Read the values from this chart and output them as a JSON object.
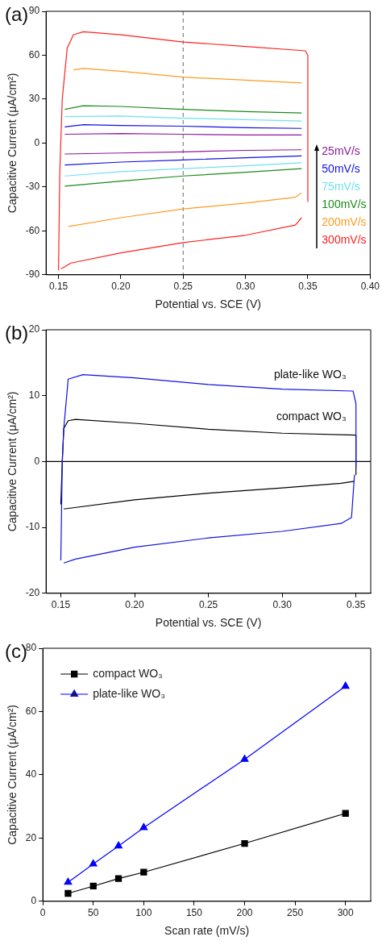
{
  "chart_data": [
    {
      "type": "line",
      "title": "(a)",
      "xlabel": "Potential vs. SCE (V)",
      "ylabel": "Capacitive Current (μA/cm²)",
      "xlim": [
        0.14,
        0.4
      ],
      "xticks": [
        {
          "value": 0.15,
          "label": "0.15"
        },
        {
          "value": 0.2,
          "label": "0.20"
        },
        {
          "value": 0.25,
          "label": "0.25"
        },
        {
          "value": 0.3,
          "label": "0.30"
        },
        {
          "value": 0.35,
          "label": "0.35"
        },
        {
          "value": 0.4,
          "label": "0.40"
        }
      ],
      "ylim": [
        -90,
        90
      ],
      "yticks": [
        -90,
        -60,
        -30,
        0,
        30,
        60,
        90
      ],
      "legend": "bottom right",
      "grid": false,
      "ref_lines": [
        {
          "axis": "x",
          "value": 0.25,
          "color": "#808080",
          "line_style": "dashed"
        }
      ],
      "series": [
        {
          "name": "25mV/s",
          "color": "#8a1a9a",
          "x": [
            0.155,
            0.2,
            0.25,
            0.3,
            0.345
          ],
          "values": [
            6,
            6.5,
            6,
            5.5,
            5.5
          ]
        },
        {
          "name": "50mV/s",
          "color": "#1010e0",
          "x": [
            0.155,
            0.17,
            0.2,
            0.25,
            0.3,
            0.345
          ],
          "values": [
            11,
            12.5,
            12,
            11.5,
            10.5,
            10
          ]
        },
        {
          "name": "75mV/s",
          "color": "#70e0f0",
          "x": [
            0.155,
            0.2,
            0.25,
            0.3,
            0.345
          ],
          "values": [
            18,
            18.5,
            17,
            16,
            15
          ]
        },
        {
          "name": "100mV/s",
          "color": "#1a8a1a",
          "x": [
            0.155,
            0.17,
            0.2,
            0.25,
            0.3,
            0.345
          ],
          "values": [
            23,
            25.5,
            25,
            23,
            21.5,
            20.5
          ]
        },
        {
          "name": "200mV/s",
          "color": "#ff9a20",
          "x": [
            0.162,
            0.17,
            0.2,
            0.25,
            0.3,
            0.345
          ],
          "values": [
            50,
            51,
            49,
            45,
            43,
            41
          ]
        },
        {
          "name": "300mV/s",
          "color": "#ff2020",
          "x": [
            0.15,
            0.151,
            0.153,
            0.157,
            0.162,
            0.17,
            0.2,
            0.25,
            0.3,
            0.348,
            0.35,
            0.35
          ],
          "values": [
            -87,
            -20,
            30,
            65,
            74,
            76,
            74,
            69,
            66,
            63,
            60,
            -40
          ]
        },
        {
          "color": "#8a1a9a",
          "x": [
            0.155,
            0.2,
            0.25,
            0.3,
            0.345
          ],
          "values": [
            -7.5,
            -6.8,
            -6,
            -5,
            -4.6
          ]
        },
        {
          "color": "#1010e0",
          "x": [
            0.155,
            0.2,
            0.25,
            0.3,
            0.345
          ],
          "values": [
            -15,
            -13,
            -11.5,
            -10,
            -8.8
          ]
        },
        {
          "color": "#70e0f0",
          "x": [
            0.155,
            0.2,
            0.25,
            0.3,
            0.345
          ],
          "values": [
            -22.5,
            -19.5,
            -17.5,
            -15.5,
            -13.5
          ]
        },
        {
          "color": "#1a8a1a",
          "x": [
            0.155,
            0.2,
            0.25,
            0.3,
            0.345
          ],
          "values": [
            -29.5,
            -26,
            -22.5,
            -20,
            -17.5
          ]
        },
        {
          "color": "#ff9a20",
          "x": [
            0.158,
            0.2,
            0.25,
            0.3,
            0.34,
            0.345
          ],
          "values": [
            -57,
            -51,
            -45,
            -41,
            -37,
            -34
          ]
        },
        {
          "color": "#ff2020",
          "x": [
            0.152,
            0.16,
            0.2,
            0.25,
            0.3,
            0.34,
            0.345
          ],
          "values": [
            -86,
            -82,
            -75,
            -68,
            -63,
            -56,
            -51
          ]
        }
      ]
    },
    {
      "type": "line",
      "title": "(b)",
      "xlabel": "Potential vs. SCE (V)",
      "ylabel": "Capacitive Current (μA/cm²)",
      "xlim": [
        0.14,
        0.36
      ],
      "xticks": [
        {
          "value": 0.15,
          "label": "0.15"
        },
        {
          "value": 0.2,
          "label": "0.20"
        },
        {
          "value": 0.25,
          "label": "0.25"
        },
        {
          "value": 0.3,
          "label": "0.30"
        },
        {
          "value": 0.35,
          "label": "0.35"
        }
      ],
      "ylim": [
        -20,
        20
      ],
      "yticks": [
        -20,
        -10,
        0,
        10,
        20
      ],
      "grid": false,
      "ref_lines": [
        {
          "axis": "y",
          "value": 0,
          "color": "#000000",
          "line_style": "solid"
        }
      ],
      "series": [
        {
          "name": "plate-like WO₃",
          "color": "#1010e0",
          "x": [
            0.15,
            0.151,
            0.152,
            0.155,
            0.165,
            0.2,
            0.25,
            0.3,
            0.348,
            0.35,
            0.35
          ],
          "values": [
            -15,
            0,
            5,
            12.5,
            13.2,
            12.7,
            11.7,
            11.0,
            10.7,
            8.8,
            -1
          ]
        },
        {
          "name": "compact WO₃",
          "color": "#000000",
          "x": [
            0.15,
            0.151,
            0.152,
            0.155,
            0.16,
            0.2,
            0.25,
            0.3,
            0.35,
            0.35
          ],
          "values": [
            -6.5,
            0,
            5,
            6.2,
            6.4,
            5.8,
            4.9,
            4.3,
            4.0,
            -2
          ]
        },
        {
          "color": "#1010e0",
          "x": [
            0.152,
            0.16,
            0.2,
            0.25,
            0.3,
            0.34,
            0.347,
            0.349
          ],
          "values": [
            -15.4,
            -14.8,
            -13,
            -11.6,
            -10.6,
            -9.4,
            -8.5,
            -2
          ]
        },
        {
          "color": "#000000",
          "x": [
            0.152,
            0.2,
            0.25,
            0.3,
            0.34,
            0.349
          ],
          "values": [
            -7.2,
            -5.8,
            -4.8,
            -4,
            -3.3,
            -3
          ]
        }
      ]
    },
    {
      "type": "line",
      "title": "(c)",
      "xlabel": "Scan rate (mV/s)",
      "ylabel": "Capacitive Current (μA/cm²)",
      "x": [
        25,
        50,
        75,
        100,
        200,
        300
      ],
      "xlim": [
        0,
        325
      ],
      "xticks": [
        0,
        50,
        100,
        150,
        200,
        250,
        300
      ],
      "ylim": [
        0,
        80
      ],
      "yticks": [
        0,
        20,
        40,
        60,
        80
      ],
      "legend": "top left",
      "grid": false,
      "series": [
        {
          "name": "compact WO₃",
          "color": "#000000",
          "marker": "square",
          "values": [
            2.5,
            4.8,
            7.2,
            9.2,
            18.3,
            27.8
          ]
        },
        {
          "name": "plate-like WO₃",
          "color": "#0000ff",
          "marker": "triangle",
          "values": [
            6,
            11.8,
            17.5,
            23.3,
            44.9,
            68
          ]
        }
      ]
    }
  ]
}
